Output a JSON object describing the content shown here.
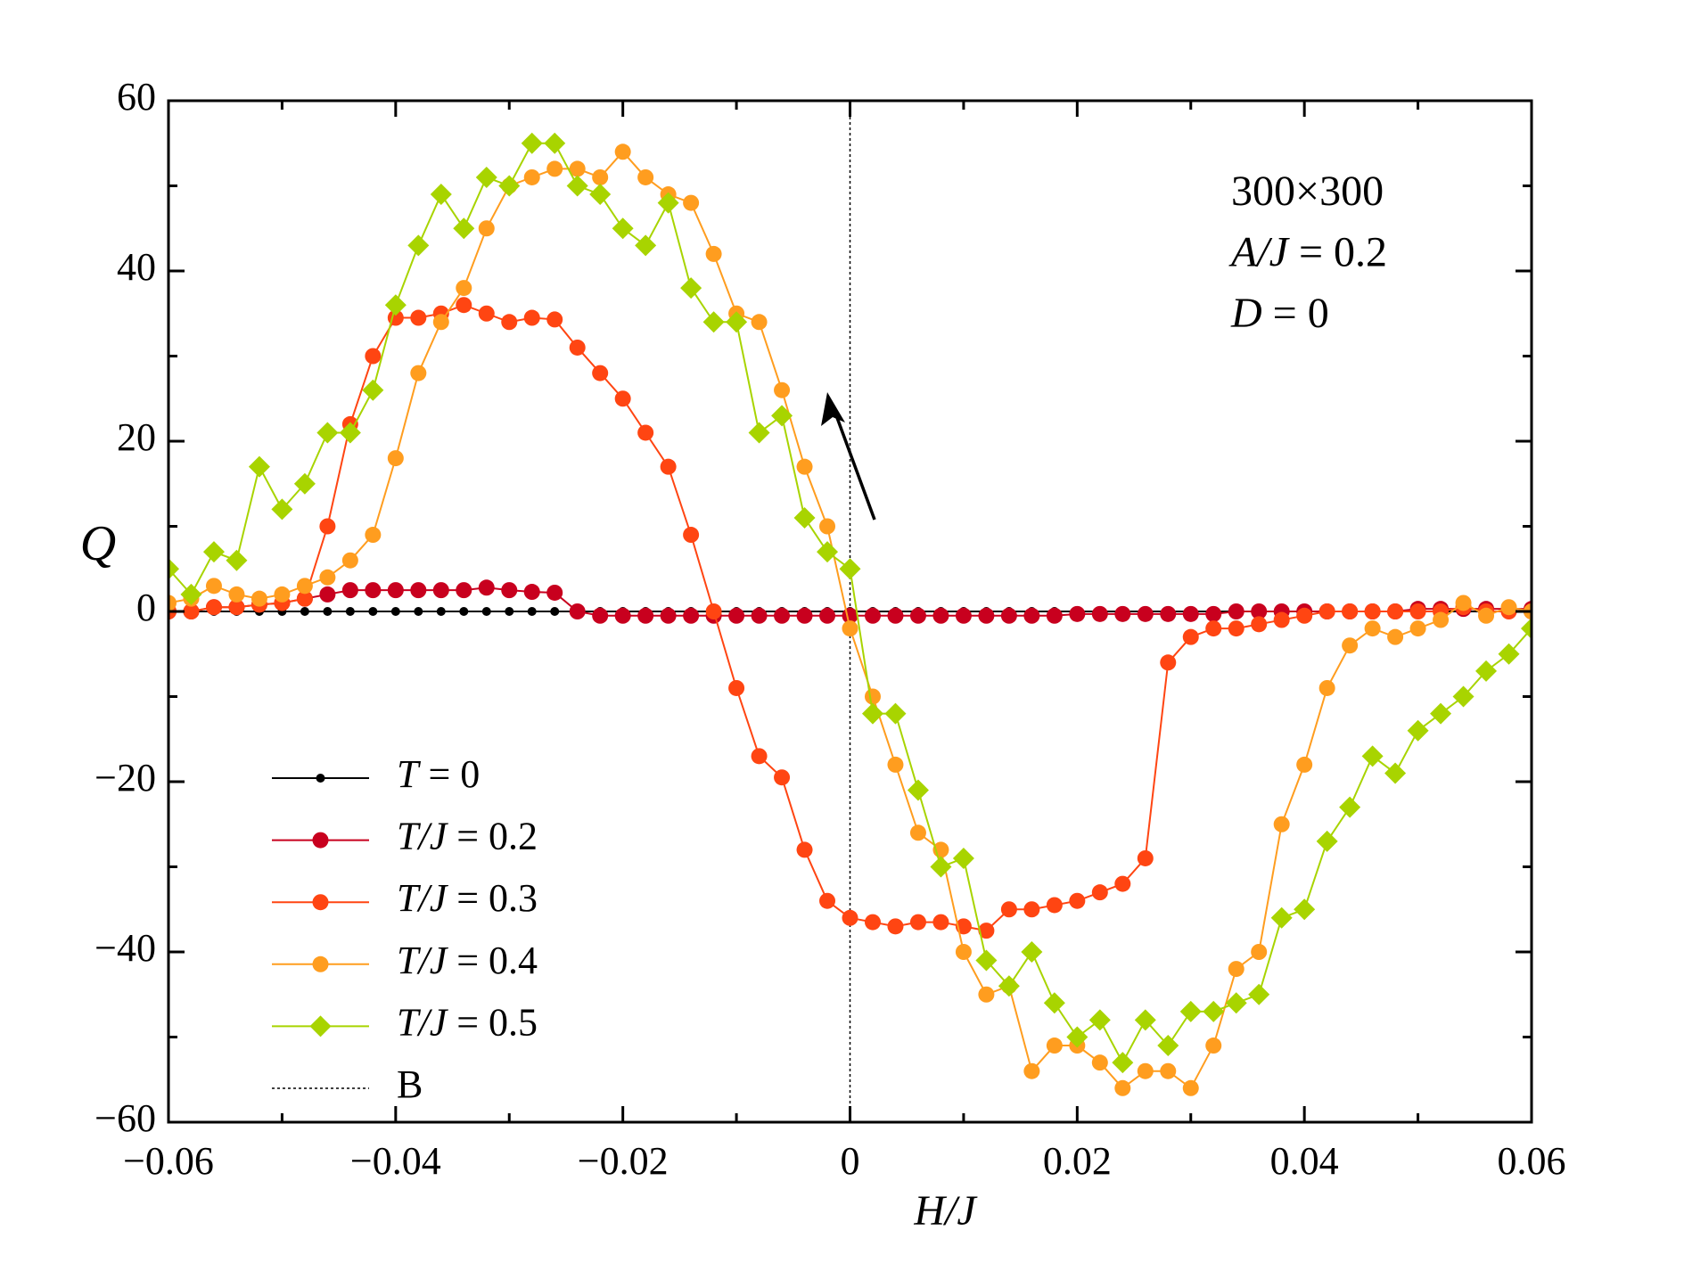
{
  "chart_data": {
    "type": "line",
    "xlabel": "H/J",
    "ylabel": "Q",
    "annotations": [
      "300×300",
      "A/J = 0.2",
      "D = 0"
    ],
    "xlim": [
      -0.06,
      0.06
    ],
    "ylim": [
      -60,
      60
    ],
    "xticks": [
      {
        "value": -0.06,
        "label": "−0.06"
      },
      {
        "value": -0.04,
        "label": "−0.04"
      },
      {
        "value": -0.02,
        "label": "−0.02"
      },
      0,
      0.02,
      0.04,
      0.06
    ],
    "yticks": [
      {
        "value": -60,
        "label": "−60"
      },
      {
        "value": -40,
        "label": "−40"
      },
      {
        "value": -20,
        "label": "−20"
      },
      0,
      20,
      40,
      60
    ],
    "legend": "lower left",
    "x": [
      -0.06,
      -0.058,
      -0.056,
      -0.054,
      -0.052,
      -0.05,
      -0.048,
      -0.046,
      -0.044,
      -0.042,
      -0.04,
      -0.038,
      -0.036,
      -0.034,
      -0.032,
      -0.03,
      -0.028,
      -0.026,
      -0.024,
      -0.022,
      -0.02,
      -0.018,
      -0.016,
      -0.014,
      -0.012,
      -0.01,
      -0.008,
      -0.006,
      -0.004,
      -0.002,
      0,
      0.002,
      0.004,
      0.006,
      0.008,
      0.01,
      0.012,
      0.014,
      0.016,
      0.018,
      0.02,
      0.022,
      0.024,
      0.026,
      0.028,
      0.03,
      0.032,
      0.034,
      0.036,
      0.038,
      0.04,
      0.042,
      0.044,
      0.046,
      0.048,
      0.05,
      0.052,
      0.054,
      0.056,
      0.058,
      0.06
    ],
    "series": [
      {
        "name": "T = 0",
        "color": "#000000",
        "marker": "dot",
        "values": [
          0,
          0,
          0,
          0,
          0,
          0,
          0,
          0,
          0,
          0,
          0,
          0,
          0,
          0,
          0,
          0,
          0,
          0,
          0,
          0,
          0,
          0,
          0,
          0,
          0,
          0,
          0,
          0,
          0,
          0,
          0,
          0,
          0,
          0,
          0,
          0,
          0,
          0,
          0,
          0,
          0,
          0,
          0,
          0,
          0,
          0,
          0,
          0,
          0,
          0,
          0,
          0,
          0,
          0,
          0,
          0,
          0,
          0,
          0,
          0,
          0
        ]
      },
      {
        "name": "T/J = 0.2",
        "color": "#c8001e",
        "marker": "circle",
        "values": [
          0,
          0,
          0.5,
          0.5,
          0.8,
          1,
          1.5,
          2,
          2.5,
          2.5,
          2.5,
          2.5,
          2.5,
          2.5,
          2.8,
          2.5,
          2.3,
          2.2,
          0,
          -0.5,
          -0.5,
          -0.5,
          -0.5,
          -0.5,
          -0.5,
          -0.5,
          -0.5,
          -0.5,
          -0.5,
          -0.5,
          -0.5,
          -0.5,
          -0.5,
          -0.5,
          -0.5,
          -0.5,
          -0.5,
          -0.5,
          -0.5,
          -0.5,
          -0.3,
          -0.3,
          -0.3,
          -0.3,
          -0.3,
          -0.3,
          -0.3,
          0,
          0,
          0,
          0,
          0,
          0,
          0,
          0,
          0.3,
          0.3,
          0.3,
          0.3,
          0.3,
          0.3
        ]
      },
      {
        "name": "T/J = 0.3",
        "color": "#ff4512",
        "marker": "circle",
        "values": [
          0,
          0,
          0.5,
          0.5,
          0.8,
          1,
          1.5,
          10,
          22,
          30,
          34.5,
          34.5,
          35,
          36,
          35,
          34,
          34.5,
          34.3,
          31,
          28,
          25,
          21,
          17,
          9,
          0,
          -9,
          -17,
          -19.5,
          -28,
          -34,
          -36,
          -36.5,
          -37,
          -36.5,
          -36.5,
          -37,
          -37.5,
          -35,
          -35,
          -34.5,
          -34,
          -33,
          -32,
          -29,
          -6,
          -3,
          -2,
          -2,
          -1.5,
          -1,
          -0.5,
          0,
          0,
          0,
          0,
          0,
          0,
          0.5,
          0,
          0,
          0
        ]
      },
      {
        "name": "T/J = 0.4",
        "color": "#ff9d1f",
        "marker": "circle",
        "values": [
          1,
          1.5,
          3,
          2,
          1.5,
          2,
          3,
          4,
          6,
          9,
          18,
          28,
          34,
          38,
          45,
          50,
          51,
          52,
          52,
          51,
          54,
          51,
          49,
          48,
          42,
          35,
          34,
          26,
          17,
          10,
          -2,
          -10,
          -18,
          -26,
          -28,
          -40,
          -45,
          -44,
          -54,
          -51,
          -51,
          -53,
          -56,
          -54,
          -54,
          -56,
          -51,
          -42,
          -40,
          -25,
          -18,
          -9,
          -4,
          -2,
          -3,
          -2,
          -1,
          1,
          -0.5,
          0.5,
          0
        ]
      },
      {
        "name": "T/J = 0.5",
        "color": "#a8d400",
        "marker": "diamond",
        "values": [
          5,
          2,
          7,
          6,
          17,
          12,
          15,
          21,
          21,
          26,
          36,
          43,
          49,
          45,
          51,
          50,
          55,
          55,
          50,
          49,
          45,
          43,
          48,
          38,
          34,
          34,
          21,
          23,
          11,
          7,
          5,
          -12,
          -12,
          -21,
          -30,
          -29,
          -41,
          -44,
          -40,
          -46,
          -50,
          -48,
          -53,
          -48,
          -51,
          -47,
          -47,
          -46,
          -45,
          -36,
          -35,
          -27,
          -23,
          -17,
          -19,
          -14,
          -12,
          -10,
          -7,
          -5,
          -2
        ]
      }
    ],
    "vline": {
      "name": "B",
      "x": 0
    }
  }
}
